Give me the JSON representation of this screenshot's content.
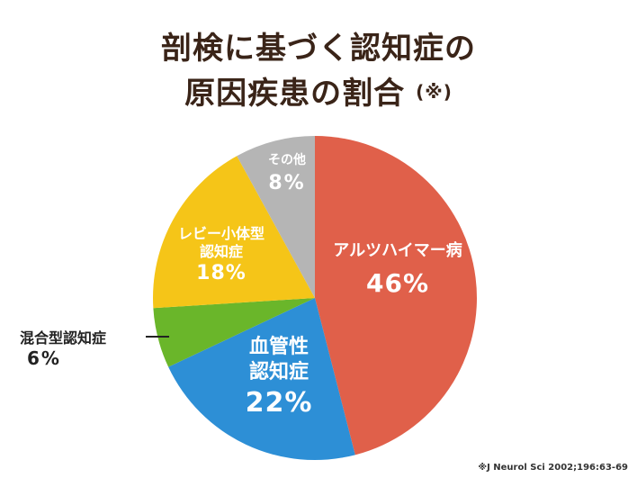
{
  "title_line1": "剖検に基づく認知症の",
  "title_line2": "原因疾患の割合",
  "title_note_mark": "(※)",
  "source_note": "※J Neurol Sci 2002;196:63-69",
  "chart_data": {
    "type": "pie",
    "title": "剖検に基づく認知症の原因疾患の割合",
    "slices": [
      {
        "label": "アルツハイマー病",
        "value": 46,
        "value_text": "46%",
        "color": "#e0604a"
      },
      {
        "label": "血管性認知症",
        "label_lines": [
          "血管性",
          "認知症"
        ],
        "value": 22,
        "value_text": "22%",
        "color": "#2d8fd6"
      },
      {
        "label": "混合型認知症",
        "value": 6,
        "value_text": "6%",
        "color": "#6ab62a"
      },
      {
        "label": "レビー小体型認知症",
        "label_lines": [
          "レビー小体型",
          "認知症"
        ],
        "value": 18,
        "value_text": "18%",
        "color": "#f5c518"
      },
      {
        "label": "その他",
        "value": 8,
        "value_text": "8%",
        "color": "#b5b5b5"
      }
    ]
  }
}
